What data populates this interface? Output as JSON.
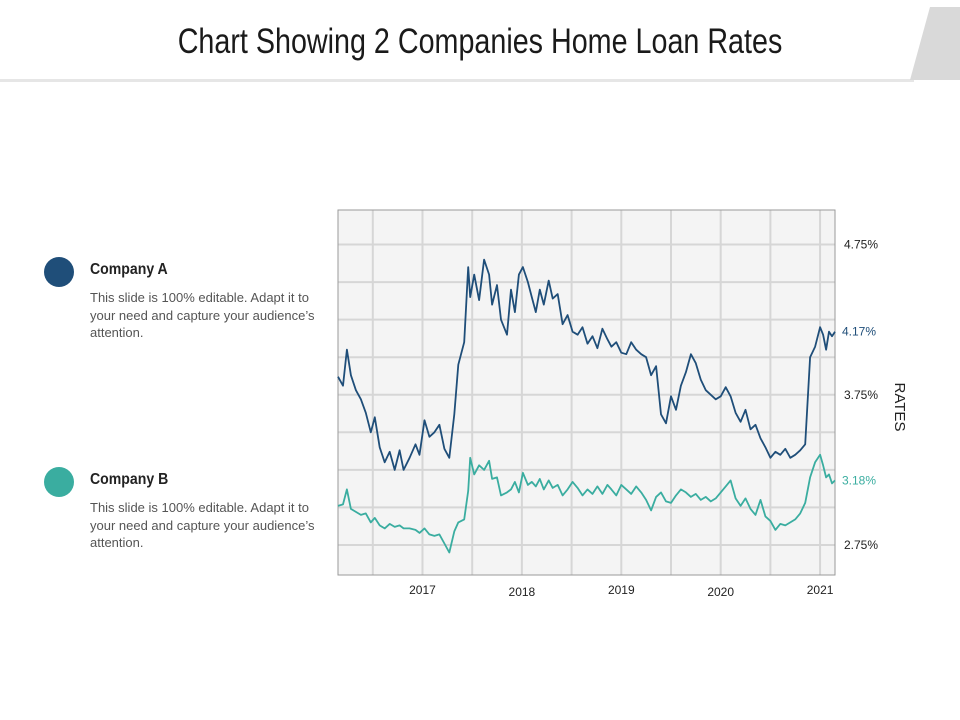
{
  "page": {
    "title": "Chart Showing 2 Companies Home Loan Rates"
  },
  "legend": [
    {
      "name": "Company A",
      "description": "This slide is 100% editable. Adapt it to your need and capture your audience’s attention.",
      "color": "#1f4e79"
    },
    {
      "name": "Company B",
      "description": "This slide is 100% editable. Adapt it to your need and capture your audience’s attention.",
      "color": "#3aada0"
    }
  ],
  "chart_data": {
    "type": "line",
    "title": "",
    "xlabel": "",
    "ylabel": "RATES",
    "xlim": [
      2016.15,
      2021.15
    ],
    "ylim": [
      2.55,
      4.98
    ],
    "x_ticks": [
      {
        "label": "2017",
        "value": 2017.0
      },
      {
        "label": "2018",
        "value": 2018.0
      },
      {
        "label": "2019",
        "value": 2019.0
      },
      {
        "label": "2020",
        "value": 2020.0
      },
      {
        "label": "2021",
        "value": 2021.0
      }
    ],
    "y_ticks": [
      {
        "label": "4.75%",
        "value": 4.75
      },
      {
        "label": "3.75%",
        "value": 3.75
      },
      {
        "label": "2.75%",
        "value": 2.75
      }
    ],
    "series": [
      {
        "name": "Company A",
        "color": "#1f4e79",
        "end_label": "4.17%",
        "points": [
          [
            2016.15,
            3.87
          ],
          [
            2016.2,
            3.81
          ],
          [
            2016.24,
            4.05
          ],
          [
            2016.28,
            3.88
          ],
          [
            2016.33,
            3.78
          ],
          [
            2016.38,
            3.72
          ],
          [
            2016.43,
            3.63
          ],
          [
            2016.48,
            3.5
          ],
          [
            2016.52,
            3.6
          ],
          [
            2016.57,
            3.4
          ],
          [
            2016.62,
            3.3
          ],
          [
            2016.67,
            3.37
          ],
          [
            2016.72,
            3.25
          ],
          [
            2016.77,
            3.38
          ],
          [
            2016.81,
            3.25
          ],
          [
            2016.87,
            3.33
          ],
          [
            2016.93,
            3.42
          ],
          [
            2016.97,
            3.35
          ],
          [
            2017.02,
            3.58
          ],
          [
            2017.07,
            3.47
          ],
          [
            2017.12,
            3.5
          ],
          [
            2017.17,
            3.55
          ],
          [
            2017.22,
            3.39
          ],
          [
            2017.27,
            3.33
          ],
          [
            2017.32,
            3.62
          ],
          [
            2017.36,
            3.95
          ],
          [
            2017.42,
            4.1
          ],
          [
            2017.46,
            4.6
          ],
          [
            2017.48,
            4.4
          ],
          [
            2017.52,
            4.55
          ],
          [
            2017.57,
            4.38
          ],
          [
            2017.62,
            4.65
          ],
          [
            2017.67,
            4.55
          ],
          [
            2017.7,
            4.35
          ],
          [
            2017.75,
            4.48
          ],
          [
            2017.79,
            4.25
          ],
          [
            2017.85,
            4.15
          ],
          [
            2017.89,
            4.45
          ],
          [
            2017.93,
            4.3
          ],
          [
            2017.97,
            4.55
          ],
          [
            2018.01,
            4.6
          ],
          [
            2018.06,
            4.5
          ],
          [
            2018.1,
            4.4
          ],
          [
            2018.14,
            4.3
          ],
          [
            2018.18,
            4.45
          ],
          [
            2018.22,
            4.35
          ],
          [
            2018.27,
            4.51
          ],
          [
            2018.31,
            4.39
          ],
          [
            2018.36,
            4.42
          ],
          [
            2018.41,
            4.22
          ],
          [
            2018.46,
            4.28
          ],
          [
            2018.51,
            4.17
          ],
          [
            2018.56,
            4.15
          ],
          [
            2018.61,
            4.2
          ],
          [
            2018.66,
            4.09
          ],
          [
            2018.71,
            4.14
          ],
          [
            2018.76,
            4.06
          ],
          [
            2018.81,
            4.19
          ],
          [
            2018.86,
            4.12
          ],
          [
            2018.9,
            4.07
          ],
          [
            2018.95,
            4.1
          ],
          [
            2019.0,
            4.03
          ],
          [
            2019.05,
            4.02
          ],
          [
            2019.1,
            4.1
          ],
          [
            2019.15,
            4.05
          ],
          [
            2019.2,
            4.02
          ],
          [
            2019.25,
            4.0
          ],
          [
            2019.3,
            3.88
          ],
          [
            2019.35,
            3.94
          ],
          [
            2019.4,
            3.62
          ],
          [
            2019.45,
            3.56
          ],
          [
            2019.5,
            3.74
          ],
          [
            2019.55,
            3.65
          ],
          [
            2019.6,
            3.81
          ],
          [
            2019.65,
            3.9
          ],
          [
            2019.7,
            4.02
          ],
          [
            2019.75,
            3.96
          ],
          [
            2019.8,
            3.85
          ],
          [
            2019.85,
            3.78
          ],
          [
            2019.9,
            3.75
          ],
          [
            2019.95,
            3.72
          ],
          [
            2020.0,
            3.74
          ],
          [
            2020.05,
            3.8
          ],
          [
            2020.1,
            3.74
          ],
          [
            2020.15,
            3.63
          ],
          [
            2020.2,
            3.57
          ],
          [
            2020.25,
            3.65
          ],
          [
            2020.3,
            3.52
          ],
          [
            2020.35,
            3.55
          ],
          [
            2020.4,
            3.46
          ],
          [
            2020.45,
            3.4
          ],
          [
            2020.5,
            3.33
          ],
          [
            2020.55,
            3.37
          ],
          [
            2020.6,
            3.35
          ],
          [
            2020.65,
            3.39
          ],
          [
            2020.7,
            3.33
          ],
          [
            2020.75,
            3.35
          ],
          [
            2020.8,
            3.38
          ],
          [
            2020.85,
            3.42
          ],
          [
            2020.9,
            4.0
          ],
          [
            2020.95,
            4.07
          ],
          [
            2021.0,
            4.2
          ],
          [
            2021.03,
            4.15
          ],
          [
            2021.06,
            4.05
          ],
          [
            2021.09,
            4.17
          ],
          [
            2021.12,
            4.14
          ],
          [
            2021.15,
            4.17
          ]
        ]
      },
      {
        "name": "Company B",
        "color": "#3aada0",
        "end_label": "3.18%",
        "points": [
          [
            2016.15,
            3.01
          ],
          [
            2016.2,
            3.02
          ],
          [
            2016.24,
            3.12
          ],
          [
            2016.28,
            2.99
          ],
          [
            2016.33,
            2.97
          ],
          [
            2016.38,
            2.95
          ],
          [
            2016.43,
            2.96
          ],
          [
            2016.48,
            2.9
          ],
          [
            2016.52,
            2.93
          ],
          [
            2016.57,
            2.88
          ],
          [
            2016.62,
            2.86
          ],
          [
            2016.67,
            2.89
          ],
          [
            2016.72,
            2.87
          ],
          [
            2016.77,
            2.88
          ],
          [
            2016.81,
            2.86
          ],
          [
            2016.87,
            2.86
          ],
          [
            2016.93,
            2.85
          ],
          [
            2016.97,
            2.83
          ],
          [
            2017.02,
            2.86
          ],
          [
            2017.07,
            2.82
          ],
          [
            2017.12,
            2.81
          ],
          [
            2017.17,
            2.82
          ],
          [
            2017.22,
            2.76
          ],
          [
            2017.27,
            2.7
          ],
          [
            2017.32,
            2.84
          ],
          [
            2017.36,
            2.9
          ],
          [
            2017.42,
            2.92
          ],
          [
            2017.46,
            3.11
          ],
          [
            2017.48,
            3.33
          ],
          [
            2017.52,
            3.22
          ],
          [
            2017.57,
            3.28
          ],
          [
            2017.62,
            3.25
          ],
          [
            2017.67,
            3.31
          ],
          [
            2017.7,
            3.19
          ],
          [
            2017.75,
            3.2
          ],
          [
            2017.79,
            3.08
          ],
          [
            2017.85,
            3.1
          ],
          [
            2017.89,
            3.12
          ],
          [
            2017.93,
            3.17
          ],
          [
            2017.97,
            3.1
          ],
          [
            2018.01,
            3.23
          ],
          [
            2018.06,
            3.15
          ],
          [
            2018.1,
            3.17
          ],
          [
            2018.14,
            3.14
          ],
          [
            2018.18,
            3.19
          ],
          [
            2018.22,
            3.12
          ],
          [
            2018.27,
            3.18
          ],
          [
            2018.31,
            3.13
          ],
          [
            2018.36,
            3.15
          ],
          [
            2018.41,
            3.08
          ],
          [
            2018.46,
            3.12
          ],
          [
            2018.51,
            3.17
          ],
          [
            2018.56,
            3.13
          ],
          [
            2018.61,
            3.08
          ],
          [
            2018.66,
            3.12
          ],
          [
            2018.71,
            3.09
          ],
          [
            2018.76,
            3.14
          ],
          [
            2018.81,
            3.09
          ],
          [
            2018.86,
            3.15
          ],
          [
            2018.9,
            3.12
          ],
          [
            2018.95,
            3.08
          ],
          [
            2019.0,
            3.15
          ],
          [
            2019.05,
            3.12
          ],
          [
            2019.1,
            3.09
          ],
          [
            2019.15,
            3.14
          ],
          [
            2019.2,
            3.1
          ],
          [
            2019.25,
            3.05
          ],
          [
            2019.3,
            2.98
          ],
          [
            2019.35,
            3.07
          ],
          [
            2019.4,
            3.1
          ],
          [
            2019.45,
            3.04
          ],
          [
            2019.5,
            3.03
          ],
          [
            2019.55,
            3.08
          ],
          [
            2019.6,
            3.12
          ],
          [
            2019.65,
            3.1
          ],
          [
            2019.7,
            3.07
          ],
          [
            2019.75,
            3.09
          ],
          [
            2019.8,
            3.05
          ],
          [
            2019.85,
            3.07
          ],
          [
            2019.9,
            3.04
          ],
          [
            2019.95,
            3.06
          ],
          [
            2020.0,
            3.1
          ],
          [
            2020.05,
            3.14
          ],
          [
            2020.1,
            3.18
          ],
          [
            2020.15,
            3.06
          ],
          [
            2020.2,
            3.01
          ],
          [
            2020.25,
            3.06
          ],
          [
            2020.3,
            2.99
          ],
          [
            2020.35,
            2.95
          ],
          [
            2020.4,
            3.05
          ],
          [
            2020.45,
            2.94
          ],
          [
            2020.5,
            2.91
          ],
          [
            2020.55,
            2.85
          ],
          [
            2020.6,
            2.89
          ],
          [
            2020.65,
            2.88
          ],
          [
            2020.7,
            2.9
          ],
          [
            2020.75,
            2.92
          ],
          [
            2020.8,
            2.96
          ],
          [
            2020.85,
            3.03
          ],
          [
            2020.9,
            3.2
          ],
          [
            2020.95,
            3.3
          ],
          [
            2021.0,
            3.35
          ],
          [
            2021.03,
            3.28
          ],
          [
            2021.06,
            3.2
          ],
          [
            2021.09,
            3.22
          ],
          [
            2021.12,
            3.16
          ],
          [
            2021.15,
            3.18
          ]
        ]
      }
    ]
  }
}
